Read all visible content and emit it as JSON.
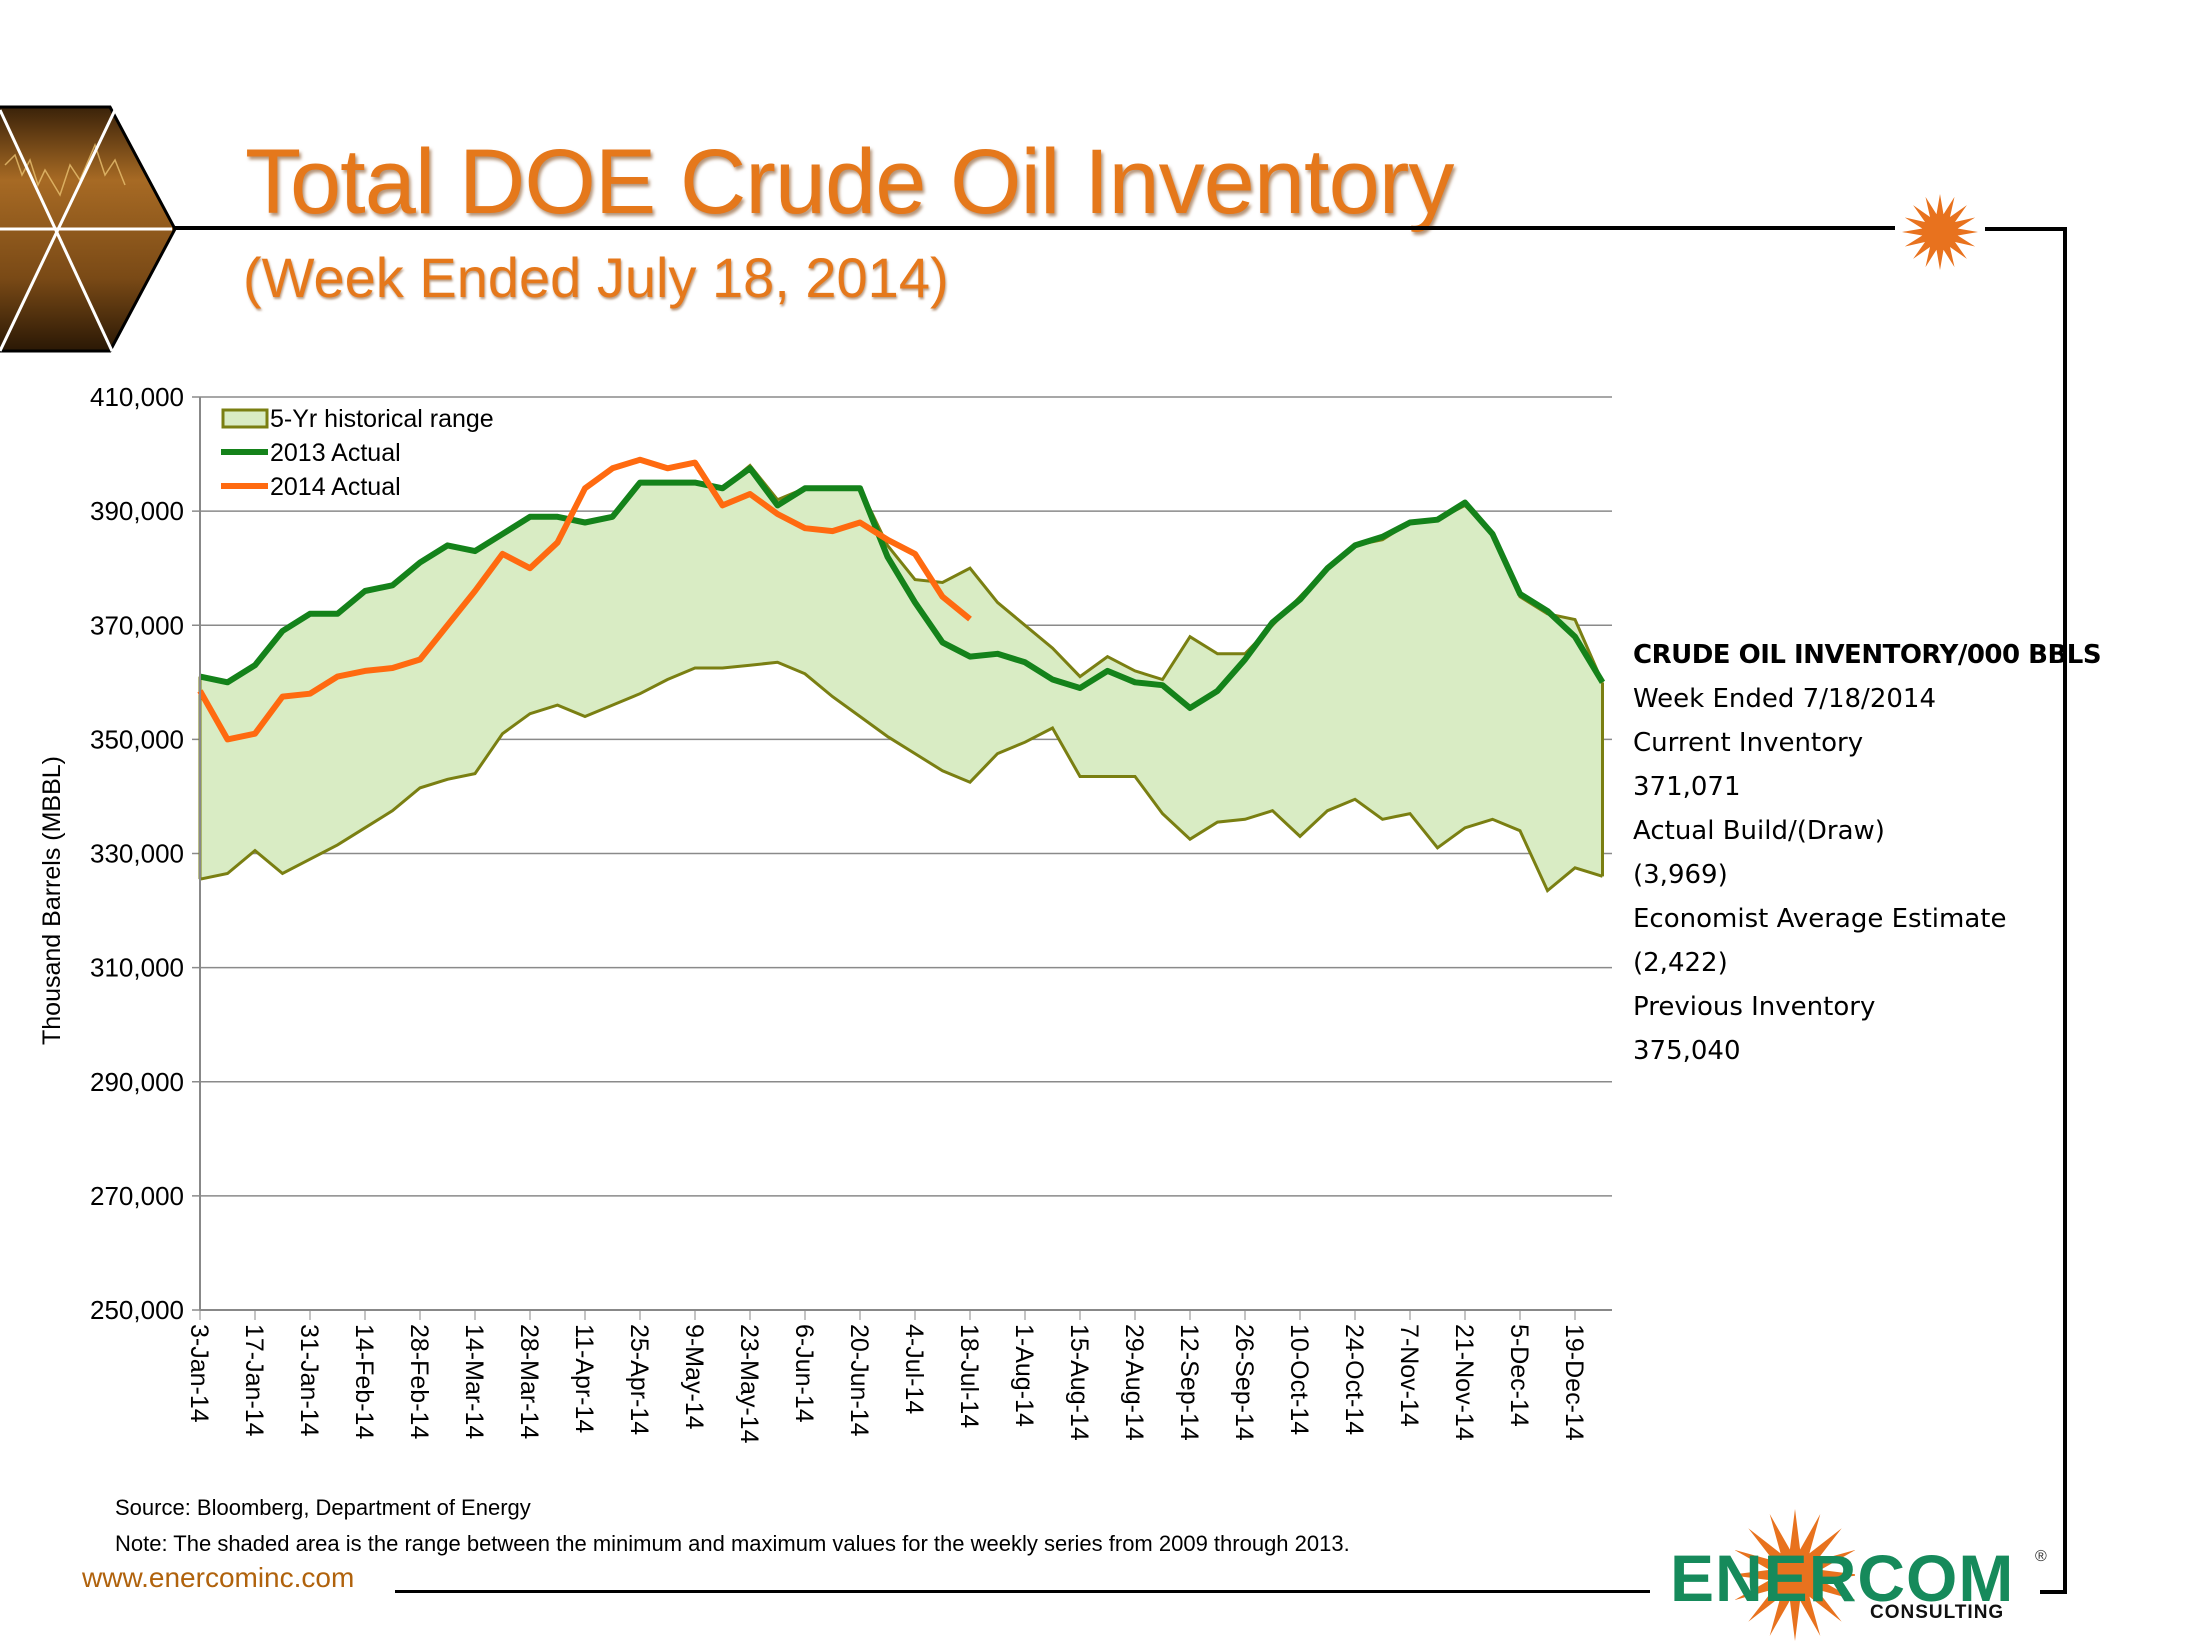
{
  "header": {
    "title": "Total DOE Crude Oil Inventory",
    "subtitle": "(Week Ended July 18, 2014)"
  },
  "info_panel": {
    "heading": "CRUDE OIL INVENTORY/000 BBLS",
    "lines": [
      "Week Ended 7/18/2014",
      "Current Inventory",
      "371,071",
      "Actual Build/(Draw)",
      "(3,969)",
      "Economist Average Estimate",
      "(2,422)",
      "Previous Inventory",
      "375,040"
    ]
  },
  "footer": {
    "source": "Source: Bloomberg, Department of Energy",
    "note": "Note: The shaded area is the range between the minimum and maximum values for the weekly series from 2009 through 2013.",
    "website": "www.enercominc.com",
    "logo_name": "ENERCOM",
    "logo_sub": "CONSULTING",
    "logo_reg": "®"
  },
  "colors": {
    "title": "#e5781b",
    "range_fill": "#d9ecc4",
    "range_stroke": "#7a7f12",
    "series_2013": "#14821a",
    "series_2014": "#ff6a10",
    "logo_green": "#168a5b",
    "logo_orange": "#e8721e"
  },
  "chart_data": {
    "type": "line",
    "title": "Total DOE Crude Oil Inventory",
    "xlabel": "",
    "ylabel": "Thousand Barrels (MBBL)",
    "ylim": [
      250000,
      410000
    ],
    "yticks": [
      250000,
      270000,
      290000,
      310000,
      330000,
      350000,
      370000,
      390000,
      410000
    ],
    "ytick_labels": [
      "250,000",
      "270,000",
      "290,000",
      "310,000",
      "330,000",
      "350,000",
      "370,000",
      "390,000",
      "410,000"
    ],
    "grid": true,
    "legend_position": "top-left",
    "x_tick_labels": [
      "3-Jan-14",
      "17-Jan-14",
      "31-Jan-14",
      "14-Feb-14",
      "28-Feb-14",
      "14-Mar-14",
      "28-Mar-14",
      "11-Apr-14",
      "25-Apr-14",
      "9-May-14",
      "23-May-14",
      "6-Jun-14",
      "20-Jun-14",
      "4-Jul-14",
      "18-Jul-14",
      "1-Aug-14",
      "15-Aug-14",
      "29-Aug-14",
      "12-Sep-14",
      "26-Sep-14",
      "10-Oct-14",
      "24-Oct-14",
      "7-Nov-14",
      "21-Nov-14",
      "5-Dec-14",
      "19-Dec-14"
    ],
    "weeks": 52,
    "legend": [
      "5-Yr historical range",
      "2013 Actual",
      "2014 Actual"
    ],
    "series": [
      {
        "name": "5-Yr historical range max",
        "values": [
          361000,
          360000,
          363000,
          369000,
          372000,
          372000,
          376000,
          377000,
          381000,
          384000,
          383000,
          386000,
          389000,
          389000,
          388000,
          389000,
          395000,
          395000,
          395000,
          394000,
          398000,
          392000,
          394000,
          394000,
          394000,
          384000,
          378000,
          377500,
          380000,
          374000,
          370000,
          366000,
          361000,
          364500,
          362000,
          360500,
          368000,
          365000,
          365000,
          370000,
          375000,
          380000,
          384000,
          385000,
          388000,
          388500,
          391000,
          386000,
          375000,
          372000,
          371000,
          360000
        ]
      },
      {
        "name": "5-Yr historical range min",
        "values": [
          325500,
          326500,
          330500,
          326500,
          329000,
          331500,
          334500,
          337500,
          341500,
          343000,
          344000,
          351000,
          354500,
          356000,
          354000,
          356000,
          358000,
          360500,
          362500,
          362500,
          363000,
          363500,
          361500,
          357500,
          354000,
          350500,
          347500,
          344500,
          342500,
          347500,
          349500,
          352000,
          343500,
          343500,
          343500,
          337000,
          332500,
          335500,
          336000,
          337500,
          333000,
          337500,
          339500,
          336000,
          337000,
          331000,
          334500,
          336000,
          334000,
          323500,
          327500,
          326000
        ]
      },
      {
        "name": "2013 Actual",
        "values": [
          361000,
          360000,
          363000,
          369000,
          372000,
          372000,
          376000,
          377000,
          381000,
          384000,
          383000,
          386000,
          389000,
          389000,
          388000,
          389000,
          395000,
          395000,
          395000,
          394000,
          397500,
          391000,
          394000,
          394000,
          394000,
          382000,
          374000,
          367000,
          364500,
          365000,
          363500,
          360500,
          359000,
          362000,
          360000,
          359500,
          355500,
          358500,
          364000,
          370500,
          374500,
          380000,
          384000,
          385500,
          388000,
          388500,
          391500,
          386000,
          375500,
          372500,
          368000,
          360000
        ]
      },
      {
        "name": "2014 Actual",
        "values": [
          358500,
          350000,
          351000,
          357500,
          358000,
          361000,
          362000,
          362500,
          364000,
          370000,
          376000,
          382500,
          380000,
          384500,
          394000,
          397500,
          399000,
          397500,
          398500,
          391000,
          393000,
          389500,
          387000,
          386500,
          388000,
          385000,
          382500,
          375000,
          371071
        ]
      }
    ]
  }
}
